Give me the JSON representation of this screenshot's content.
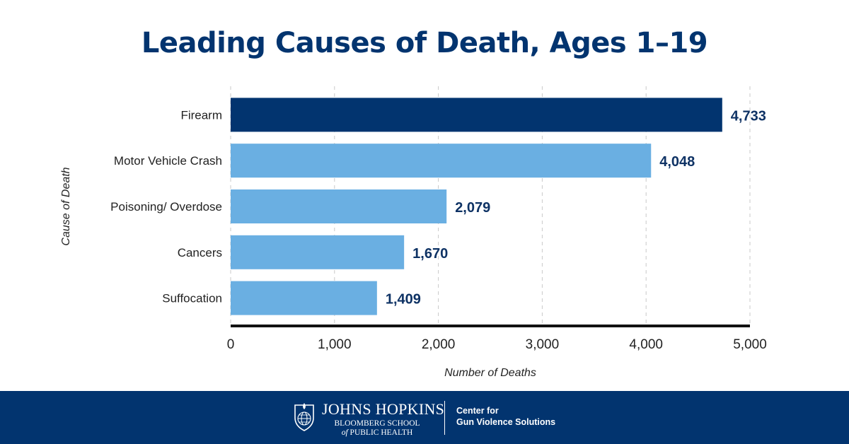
{
  "title": "Leading Causes of Death, Ages 1–19",
  "colors": {
    "highlight": "#02346f",
    "bar": "#6aafe2",
    "title": "#02346f",
    "value_label": "#0e3264",
    "text": "#222222",
    "grid": "#c9c9c9",
    "axis": "#111111",
    "footer": "#02346f"
  },
  "chart_data": {
    "type": "bar",
    "orientation": "horizontal",
    "title": "Leading Causes of Death, Ages 1–19",
    "xlabel": "Number of Deaths",
    "ylabel": "Cause of Death",
    "categories": [
      "Firearm",
      "Motor Vehicle Crash",
      "Poisoning/ Overdose",
      "Cancers",
      "Suffocation"
    ],
    "values": [
      4733,
      4048,
      2079,
      1670,
      1409
    ],
    "value_labels": [
      "4,733",
      "4,048",
      "2,079",
      "1,670",
      "1,409"
    ],
    "highlighted_category": "Firearm",
    "xlim": [
      0,
      5000
    ],
    "xticks": [
      0,
      1000,
      2000,
      3000,
      4000,
      5000
    ],
    "xtick_labels": [
      "0",
      "1,000",
      "2,000",
      "3,000",
      "4,000",
      "5,000"
    ],
    "grid": "vertical dashed",
    "legend": "none"
  },
  "footer": {
    "logo": {
      "icon": "shield-globe-icon",
      "name": "JOHNS HOPKINS",
      "school_line1": "BLOOMBERG SCHOOL",
      "school_line2_prefix": "of",
      "school_line2": "PUBLIC HEALTH"
    },
    "center_line1": "Center for",
    "center_line2": "Gun Violence Solutions"
  }
}
